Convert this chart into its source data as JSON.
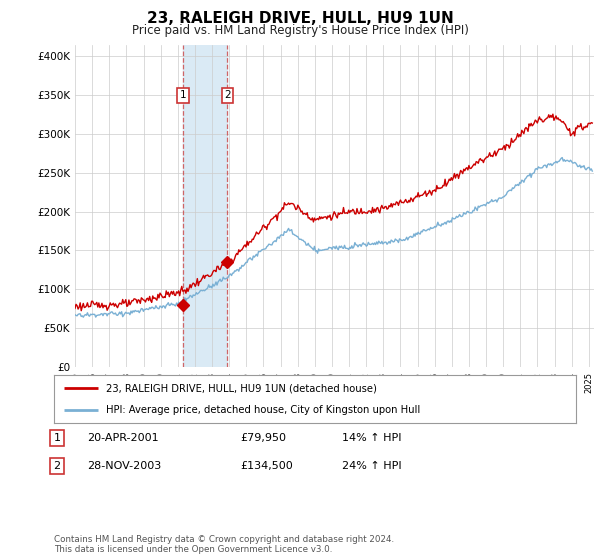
{
  "title": "23, RALEIGH DRIVE, HULL, HU9 1UN",
  "subtitle": "Price paid vs. HM Land Registry's House Price Index (HPI)",
  "ylabel_ticks": [
    "£0",
    "£50K",
    "£100K",
    "£150K",
    "£200K",
    "£250K",
    "£300K",
    "£350K",
    "£400K"
  ],
  "ytick_vals": [
    0,
    50000,
    100000,
    150000,
    200000,
    250000,
    300000,
    350000,
    400000
  ],
  "ylim": [
    0,
    415000
  ],
  "xlim_left": 1995.0,
  "xlim_right": 2025.3,
  "sale1_date_num": 2001.3,
  "sale1_price": 79950,
  "sale2_date_num": 2003.9,
  "sale2_price": 134500,
  "legend_line1": "23, RALEIGH DRIVE, HULL, HU9 1UN (detached house)",
  "legend_line2": "HPI: Average price, detached house, City of Kingston upon Hull",
  "table_row1": [
    "1",
    "20-APR-2001",
    "£79,950",
    "14% ↑ HPI"
  ],
  "table_row2": [
    "2",
    "28-NOV-2003",
    "£134,500",
    "24% ↑ HPI"
  ],
  "footer": "Contains HM Land Registry data © Crown copyright and database right 2024.\nThis data is licensed under the Open Government Licence v3.0.",
  "red_color": "#cc0000",
  "blue_color": "#7ab0d4",
  "shade_color": "#daeaf5",
  "box_edge_color": "#cc3333",
  "background_color": "#ffffff",
  "grid_color": "#cccccc",
  "title_fontsize": 11,
  "subtitle_fontsize": 8.5
}
